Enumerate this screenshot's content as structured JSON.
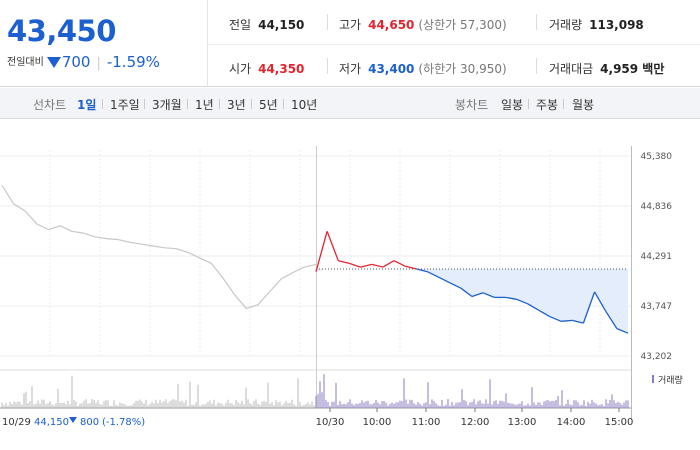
{
  "header": {
    "price": "43,450",
    "change_label": "전일대비",
    "change_amount": "700",
    "change_percent": "-1.59%",
    "stats": {
      "prev_close": {
        "label": "전일",
        "value": "44,150"
      },
      "high": {
        "label": "고가",
        "value": "44,650",
        "sub": "(상한가 57,300)"
      },
      "volume": {
        "label": "거래량",
        "value": "113,098"
      },
      "open": {
        "label": "시가",
        "value": "44,350"
      },
      "low": {
        "label": "저가",
        "value": "43,400",
        "sub": "(하한가 30,950)"
      },
      "turnover": {
        "label": "거래대금",
        "value": "4,959 백만"
      }
    }
  },
  "toolbar": {
    "line_label": "선차트",
    "periods": [
      "1일",
      "1주일",
      "3개월",
      "1년",
      "3년",
      "5년",
      "10년"
    ],
    "active_period": "1일",
    "candle_label": "봉차트",
    "candles": [
      "일봉",
      "주봉",
      "월봉"
    ]
  },
  "colors": {
    "up": "#e2242f",
    "down": "#1b5fd0",
    "prev_day_line": "#c8c8c8",
    "fill": "#e3edfb",
    "volume_today": "#8e7cc3",
    "volume_prev": "#b9b9b9"
  },
  "chart_data": {
    "type": "line",
    "y_ticks": [
      "45,380",
      "44,836",
      "44,291",
      "43,747",
      "43,202"
    ],
    "ylim": [
      43202,
      45380
    ],
    "x_ticks": [
      "10/30",
      "10:00",
      "11:00",
      "12:00",
      "13:00",
      "14:00",
      "15:00"
    ],
    "prev_close": 44150,
    "prev_day": {
      "label": "10/29",
      "close": "44,150",
      "change": "800",
      "change_percent": "(-1.78%)",
      "values": [
        45060,
        44860,
        44780,
        44640,
        44580,
        44620,
        44560,
        44540,
        44500,
        44480,
        44470,
        44440,
        44420,
        44400,
        44380,
        44370,
        44330,
        44270,
        44210,
        44050,
        43870,
        43720,
        43760,
        43900,
        44040,
        44110,
        44170,
        44200
      ]
    },
    "today": {
      "times": [
        "09:00",
        "09:05",
        "09:10",
        "09:20",
        "09:30",
        "09:45",
        "10:00",
        "10:15",
        "10:30",
        "10:45",
        "11:00",
        "11:15",
        "11:30",
        "11:45",
        "12:00",
        "12:15",
        "12:30",
        "12:45",
        "13:00",
        "13:15",
        "13:30",
        "13:45",
        "14:00",
        "14:15",
        "14:30",
        "14:45",
        "15:00",
        "15:10",
        "15:20"
      ],
      "values": [
        44120,
        44560,
        44240,
        44210,
        44170,
        44200,
        44170,
        44240,
        44180,
        44150,
        44120,
        44060,
        44000,
        43940,
        43850,
        43890,
        43840,
        43840,
        43820,
        43770,
        43700,
        43630,
        43580,
        43590,
        43560,
        43900,
        43690,
        43500,
        43450
      ]
    },
    "volume_label": "거래량"
  }
}
